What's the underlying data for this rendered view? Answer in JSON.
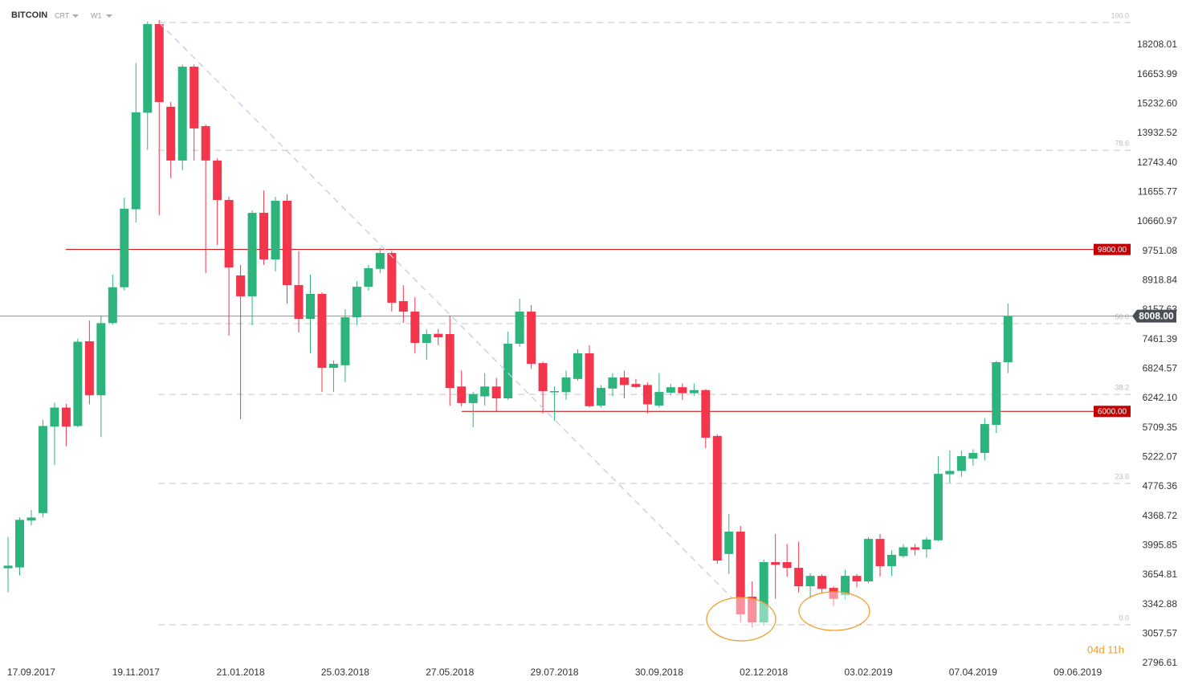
{
  "toolbar": {
    "symbol": "BITCOIN",
    "chart_style": "CRT",
    "interval": "W1"
  },
  "countdown": "04d 11h",
  "chart_data": {
    "type": "candlestick",
    "log_scale": true,
    "up_color": "#2db37c",
    "down_color": "#f4364c",
    "categories": [
      null,
      null,
      "17.09.2017",
      null,
      null,
      null,
      null,
      null,
      null,
      null,
      null,
      "19.11.2017",
      null,
      null,
      null,
      null,
      null,
      null,
      null,
      null,
      "21.01.2018",
      null,
      null,
      null,
      null,
      null,
      null,
      null,
      null,
      "25.03.2018",
      null,
      null,
      null,
      null,
      null,
      null,
      null,
      null,
      "27.05.2018",
      null,
      null,
      null,
      null,
      null,
      null,
      null,
      null,
      "29.07.2018",
      null,
      null,
      null,
      null,
      null,
      null,
      null,
      null,
      "30.09.2018",
      null,
      null,
      null,
      null,
      null,
      null,
      null,
      null,
      "02.12.2018",
      null,
      null,
      null,
      null,
      null,
      null,
      null,
      null,
      "03.02.2019",
      null,
      null,
      null,
      null,
      null,
      null,
      null,
      null,
      "07.04.2019",
      null,
      null,
      null,
      null,
      null,
      null,
      null,
      null,
      "09.06.2019"
    ],
    "open": [
      3730,
      3740,
      4310,
      4410,
      5730,
      6070,
      5740,
      7420,
      6300,
      7840,
      8740,
      11070,
      14830,
      19400,
      15100,
      12830,
      17050,
      14240,
      12830,
      11385,
      9058,
      8504,
      10950,
      9508,
      11358,
      8798,
      7942,
      8565,
      6846,
      6900,
      7980,
      8753,
      9240,
      9696,
      8380,
      8117,
      7384,
      7590,
      7584,
      6470,
      6153,
      6280,
      6470,
      6242,
      7366,
      8117,
      6945,
      6360,
      6360,
      6620,
      7154,
      6107,
      6430,
      6649,
      6520,
      6500,
      6107,
      6350,
      6456,
      6340,
      6400,
      5570,
      3895,
      4168,
      3422,
      3166,
      3800,
      3800,
      3735,
      3532,
      3645,
      3515,
      3440,
      3645,
      3585,
      4077,
      3754,
      3870,
      3975,
      3950,
      4060,
      4960,
      5010,
      5200,
      5290,
      5760,
      6965,
      null,
      null,
      null,
      null,
      null,
      null
    ],
    "high": [
      4100,
      4350,
      4450,
      5850,
      6160,
      6140,
      7480,
      7900,
      8020,
      9080,
      11470,
      17240,
      19550,
      19634,
      15320,
      17160,
      17160,
      14310,
      12920,
      11500,
      9350,
      11030,
      11722,
      11500,
      11580,
      9750,
      9080,
      8610,
      7000,
      8178,
      8900,
      9350,
      9850,
      9750,
      8798,
      8480,
      7700,
      7700,
      8020,
      6790,
      6364,
      6737,
      6640,
      7640,
      8441,
      8280,
      6975,
      6470,
      6790,
      7240,
      7330,
      6500,
      6737,
      6790,
      6620,
      6550,
      6737,
      6520,
      6530,
      6530,
      6420,
      5600,
      4397,
      4240,
      3584,
      3830,
      4138,
      4013,
      4043,
      3674,
      3665,
      3532,
      3710,
      3665,
      4100,
      4138,
      3940,
      4013,
      4013,
      4100,
      5238,
      5330,
      5330,
      5350,
      5880,
      6990,
      8319,
      null,
      null,
      null,
      null,
      null,
      null
    ],
    "low": [
      3470,
      3650,
      4250,
      4350,
      5100,
      5400,
      5720,
      6130,
      5550,
      7800,
      8660,
      10640,
      13250,
      10870,
      12160,
      12455,
      12830,
      9125,
      9932,
      7547,
      5860,
      7790,
      9350,
      9168,
      8319,
      7620,
      7154,
      6364,
      6364,
      6555,
      7790,
      8650,
      9125,
      8117,
      7848,
      7154,
      7016,
      7330,
      6107,
      6095,
      5719,
      6107,
      6005,
      6215,
      7300,
      6825,
      5961,
      5830,
      6215,
      6580,
      6070,
      6070,
      6280,
      6242,
      6440,
      5961,
      6070,
      6300,
      6210,
      6290,
      5368,
      3783,
      3665,
      3166,
      3117,
      3135,
      3400,
      3636,
      3465,
      3400,
      3465,
      3325,
      3390,
      3520,
      3565,
      3636,
      3645,
      3850,
      3880,
      3850,
      4050,
      4830,
      4920,
      5090,
      5170,
      5620,
      6737,
      null,
      null,
      null,
      null,
      null,
      null
    ],
    "close": [
      3760,
      4320,
      4350,
      5740,
      6070,
      5730,
      7410,
      6300,
      7840,
      8740,
      11090,
      14850,
      19400,
      15318,
      12830,
      17050,
      14140,
      12830,
      11385,
      9281,
      8504,
      10950,
      9508,
      11358,
      8798,
      7942,
      8565,
      6846,
      6930,
      7980,
      8753,
      9259,
      9696,
      8340,
      8117,
      7384,
      7584,
      7510,
      6442,
      6153,
      6325,
      6470,
      6242,
      7366,
      8117,
      6931,
      6380,
      6380,
      6649,
      7154,
      6095,
      6442,
      6649,
      6500,
      6460,
      6130,
      6364,
      6456,
      6340,
      6400,
      5541,
      3818,
      4168,
      3245,
      3166,
      3800,
      3770,
      3735,
      3532,
      3645,
      3505,
      3400,
      3645,
      3585,
      4077,
      3754,
      3885,
      3975,
      3945,
      4070,
      4966,
      5010,
      5240,
      5290,
      5774,
      6965,
      8008,
      null,
      null,
      null,
      null,
      null,
      null
    ],
    "ylim": [
      2651,
      20868
    ],
    "yticks": [
      18208.01,
      16653.99,
      {
        "value": 15232.6,
        "label": "15232.60"
      },
      13932.52,
      {
        "value": 12743.4,
        "label": "12743.40"
      },
      11655.77,
      10660.97,
      9751.08,
      8918.84,
      8157.63,
      7461.39,
      6824.57,
      {
        "value": 6242.1,
        "label": "6242.10"
      },
      5709.35,
      5222.07,
      4776.36,
      4368.72,
      3995.85,
      3654.81,
      3342.88,
      3057.57,
      2796.61
    ],
    "fib_levels": [
      {
        "label": "100.0",
        "price": 19490
      },
      {
        "label": "78.6",
        "price": 13237
      },
      {
        "label": "50.0",
        "price": 7828
      },
      {
        "label": "38.2",
        "price": 6318
      },
      {
        "label": "23.6",
        "price": 4823
      },
      {
        "label": "0.0",
        "price": 3143
      }
    ],
    "price_lines": [
      {
        "price": 9800,
        "label": "9800.00",
        "color": "#c00000"
      },
      {
        "price": 6000,
        "label": "6000.00",
        "color": "#c00000"
      }
    ],
    "current_price": {
      "price": 8008,
      "label": "8008.00",
      "color": "#4a4f57"
    }
  }
}
